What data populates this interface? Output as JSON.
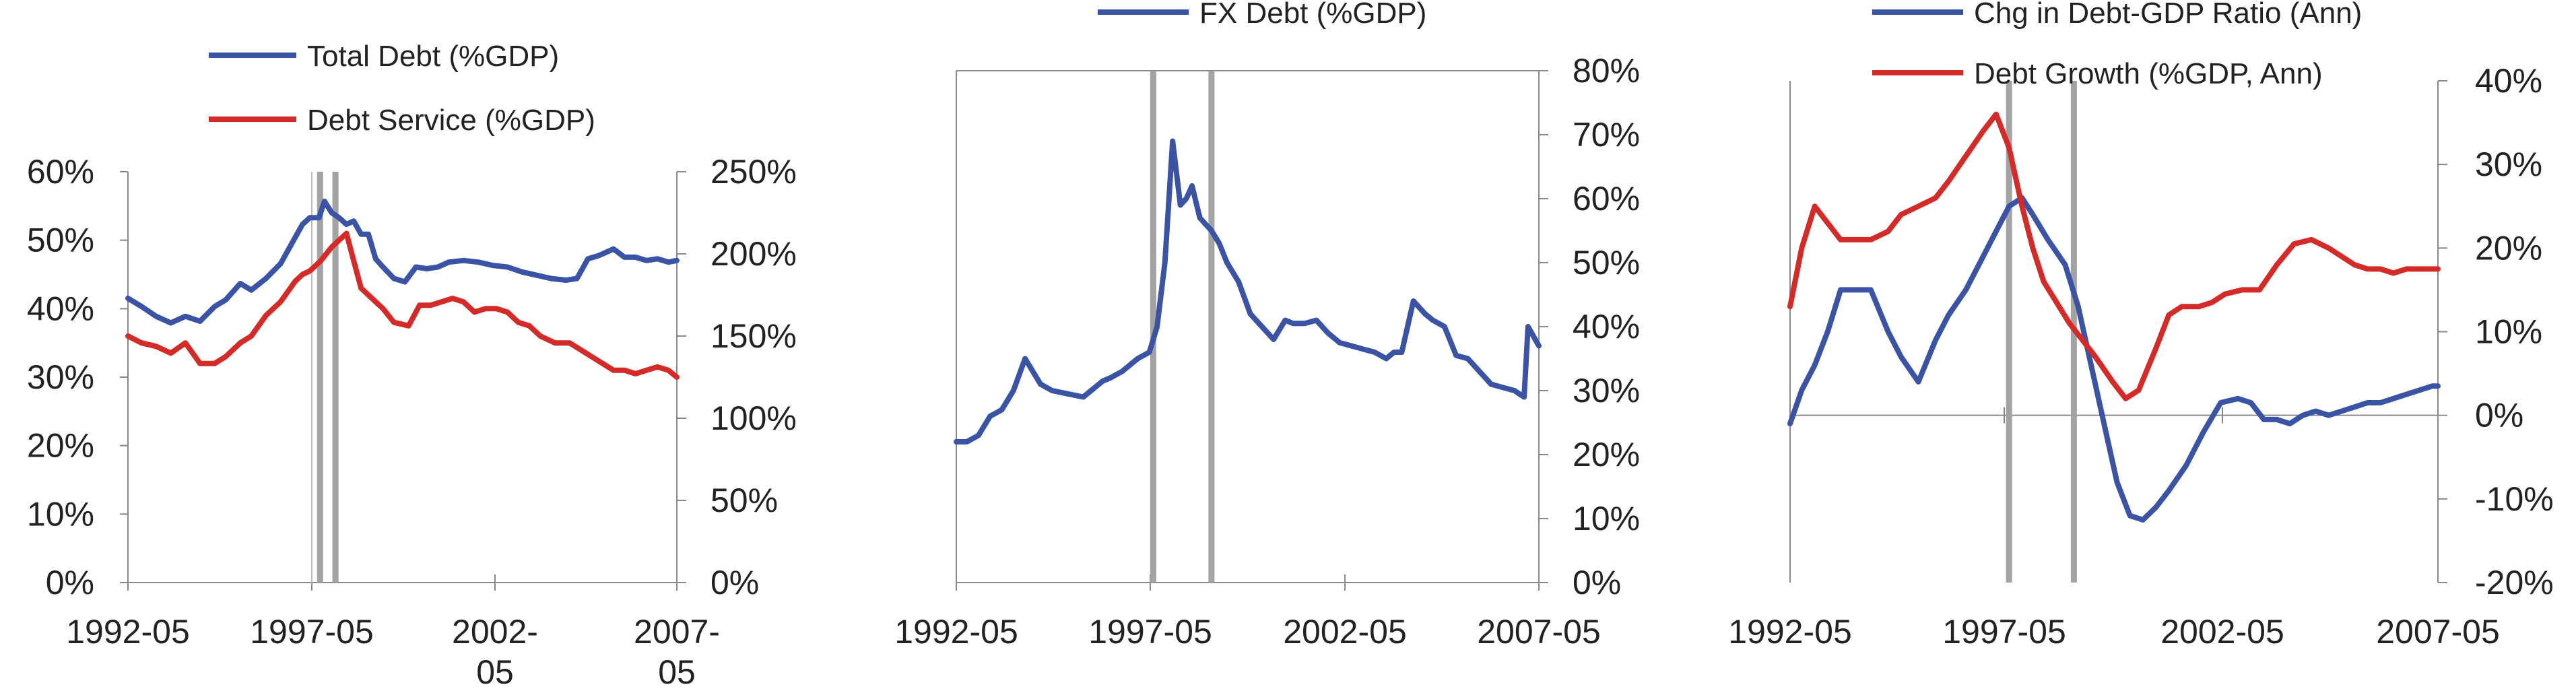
{
  "colors": {
    "blue": "#3a53a4",
    "red": "#d42a28",
    "axis": "#888888",
    "event": "#a3a3a3",
    "text": "#222222"
  },
  "chart_data": [
    {
      "type": "line",
      "title": "",
      "x_ticks": [
        "1992-05",
        "1997-05",
        "2002-",
        "2007-"
      ],
      "x_ticks_line2": [
        "",
        "",
        "05",
        "05"
      ],
      "x_range": [
        1992.33,
        2007.33
      ],
      "event_lines": [
        1997.58,
        1998.0
      ],
      "left_axis": {
        "ticks": [
          "0%",
          "10%",
          "20%",
          "30%",
          "40%",
          "50%",
          "60%"
        ],
        "range": [
          0,
          60
        ],
        "color": "red"
      },
      "right_axis": {
        "ticks": [
          "0%",
          "50%",
          "100%",
          "150%",
          "200%",
          "250%"
        ],
        "range": [
          0,
          250
        ],
        "color": "blue"
      },
      "legend": [
        "Total Debt (%GDP)",
        "Debt Service (%GDP)"
      ],
      "series": [
        {
          "name": "Total Debt (%GDP)",
          "axis": "right",
          "color": "blue",
          "x": [
            1992.33,
            1992.7,
            1993.1,
            1993.5,
            1993.9,
            1994.3,
            1994.7,
            1995.0,
            1995.4,
            1995.7,
            1996.1,
            1996.5,
            1996.9,
            1997.1,
            1997.3,
            1997.55,
            1997.7,
            1997.9,
            1998.1,
            1998.3,
            1998.5,
            1998.7,
            1998.9,
            1999.1,
            1999.3,
            1999.6,
            1999.9,
            2000.2,
            2000.5,
            2000.8,
            2001.1,
            2001.5,
            2001.9,
            2002.3,
            2002.7,
            2003.1,
            2003.5,
            2003.9,
            2004.3,
            2004.6,
            2004.9,
            2005.2,
            2005.6,
            2005.9,
            2006.2,
            2006.5,
            2006.8,
            2007.1,
            2007.33
          ],
          "y": [
            173,
            168,
            162,
            158,
            162,
            159,
            168,
            172,
            182,
            178,
            185,
            194,
            210,
            218,
            222,
            222,
            232,
            225,
            222,
            218,
            220,
            212,
            212,
            197,
            192,
            185,
            183,
            192,
            191,
            192,
            195,
            196,
            195,
            193,
            192,
            189,
            187,
            185,
            184,
            185,
            197,
            199,
            203,
            198,
            198,
            196,
            197,
            195,
            196
          ]
        },
        {
          "name": "Debt Service (%GDP)",
          "axis": "left",
          "color": "red",
          "x": [
            1992.33,
            1992.7,
            1993.1,
            1993.5,
            1993.9,
            1994.3,
            1994.7,
            1995.0,
            1995.4,
            1995.7,
            1996.1,
            1996.5,
            1996.9,
            1997.1,
            1997.3,
            1997.6,
            1997.9,
            1998.1,
            1998.3,
            1998.5,
            1998.7,
            1999.0,
            1999.3,
            1999.6,
            2000.0,
            2000.3,
            2000.6,
            2000.9,
            2001.2,
            2001.5,
            2001.8,
            2002.1,
            2002.4,
            2002.7,
            2003.0,
            2003.3,
            2003.6,
            2004.0,
            2004.4,
            2004.7,
            2005.0,
            2005.3,
            2005.6,
            2005.9,
            2006.2,
            2006.5,
            2006.8,
            2007.1,
            2007.33
          ],
          "y": [
            36,
            35,
            34.5,
            33.5,
            35,
            32,
            32,
            33,
            35,
            36,
            39,
            41,
            44,
            45,
            45.5,
            47,
            49,
            50,
            51,
            47,
            43,
            41.5,
            40,
            38,
            37.5,
            40.5,
            40.5,
            41,
            41.5,
            41,
            39.5,
            40,
            40,
            39.5,
            38,
            37.5,
            36,
            35,
            35,
            34,
            33,
            32,
            31,
            31,
            30.5,
            31,
            31.5,
            31,
            30
          ]
        }
      ]
    },
    {
      "type": "line",
      "title": "",
      "x_ticks": [
        "1992-05",
        "1997-05",
        "2002-05",
        "2007-05"
      ],
      "x_range": [
        1992.33,
        2007.33
      ],
      "event_lines": [
        1997.4,
        1998.9
      ],
      "right_axis": {
        "ticks": [
          "0%",
          "10%",
          "20%",
          "30%",
          "40%",
          "50%",
          "60%",
          "70%",
          "80%"
        ],
        "range": [
          0,
          80
        ],
        "color": "text"
      },
      "legend": [
        "FX Debt (%GDP)"
      ],
      "series": [
        {
          "name": "FX Debt (%GDP)",
          "axis": "right",
          "color": "blue",
          "x": [
            1992.33,
            1992.6,
            1992.9,
            1993.2,
            1993.5,
            1993.8,
            1994.1,
            1994.3,
            1994.5,
            1994.8,
            1995.2,
            1995.6,
            1995.8,
            1996.1,
            1996.3,
            1996.6,
            1997.0,
            1997.3,
            1997.5,
            1997.7,
            1997.9,
            1998.1,
            1998.25,
            1998.4,
            1998.6,
            1998.75,
            1998.9,
            1999.1,
            1999.3,
            1999.6,
            1999.9,
            2000.2,
            2000.5,
            2000.8,
            2001.0,
            2001.3,
            2001.6,
            2001.9,
            2002.2,
            2002.5,
            2002.8,
            2003.1,
            2003.4,
            2003.6,
            2003.8,
            2004.1,
            2004.4,
            2004.6,
            2004.9,
            2005.2,
            2005.5,
            2005.8,
            2006.1,
            2006.4,
            2006.7,
            2006.95,
            2007.05,
            2007.33
          ],
          "y": [
            22,
            22,
            23,
            26,
            27,
            30,
            35,
            33,
            31,
            30,
            29.5,
            29,
            30,
            31.5,
            32,
            33,
            35,
            36,
            40,
            50,
            69,
            59,
            60,
            62,
            57,
            56,
            55,
            53,
            50,
            47,
            42,
            40,
            38,
            41,
            40.5,
            40.5,
            41,
            39,
            37.5,
            37,
            36.5,
            36,
            35,
            36,
            36,
            44,
            42,
            41,
            40,
            35.5,
            35,
            33,
            31,
            30.5,
            30,
            29,
            40,
            37
          ]
        }
      ]
    },
    {
      "type": "line",
      "title": "",
      "x_ticks": [
        "1992-05",
        "1997-05",
        "2002-05",
        "2007-05"
      ],
      "x_range": [
        1992.33,
        2007.33
      ],
      "event_lines": [
        1997.4,
        1998.9
      ],
      "right_axis": {
        "ticks": [
          "-20%",
          "-10%",
          "0%",
          "10%",
          "20%",
          "30%",
          "40%"
        ],
        "range": [
          -20,
          40
        ],
        "color": "text"
      },
      "legend": [
        "Chg in Debt-GDP Ratio (Ann)",
        "Debt Growth (%GDP, Ann)"
      ],
      "series": [
        {
          "name": "Chg in Debt-GDP Ratio (Ann)",
          "axis": "right",
          "color": "blue",
          "x": [
            1992.33,
            1992.6,
            1992.9,
            1993.2,
            1993.5,
            1993.8,
            1994.2,
            1994.6,
            1994.9,
            1995.3,
            1995.7,
            1996.0,
            1996.4,
            1996.8,
            1997.1,
            1997.4,
            1997.7,
            1997.95,
            1998.3,
            1998.7,
            1999.0,
            1999.3,
            1999.6,
            1999.9,
            2000.2,
            2000.5,
            2000.8,
            2001.1,
            2001.5,
            2001.9,
            2002.3,
            2002.7,
            2003.0,
            2003.3,
            2003.6,
            2003.9,
            2004.2,
            2004.5,
            2004.8,
            2005.1,
            2005.4,
            2005.7,
            2006.0,
            2006.3,
            2006.6,
            2006.9,
            2007.2,
            2007.33
          ],
          "y": [
            -1,
            3,
            6,
            10,
            15,
            15,
            15,
            10,
            7,
            4,
            9,
            12,
            15,
            19,
            22,
            25,
            26,
            24,
            21,
            18,
            13,
            6,
            -1,
            -8,
            -12,
            -12.5,
            -11,
            -9,
            -6,
            -2,
            1.5,
            2,
            1.5,
            -0.5,
            -0.5,
            -1,
            0,
            0.5,
            0,
            0.5,
            1,
            1.5,
            1.5,
            2,
            2.5,
            3,
            3.5,
            3.5
          ]
        },
        {
          "name": "Debt Growth (%GDP, Ann)",
          "axis": "right",
          "color": "red",
          "x": [
            1992.33,
            1992.6,
            1992.9,
            1993.2,
            1993.5,
            1993.8,
            1994.2,
            1994.6,
            1994.9,
            1995.3,
            1995.7,
            1996.0,
            1996.4,
            1996.8,
            1997.1,
            1997.4,
            1997.7,
            1997.95,
            1998.2,
            1998.5,
            1998.8,
            1999.1,
            1999.4,
            1999.8,
            2000.1,
            2000.4,
            2000.8,
            2001.1,
            2001.4,
            2001.8,
            2002.1,
            2002.4,
            2002.8,
            2003.2,
            2003.6,
            2004.0,
            2004.4,
            2004.8,
            2005.1,
            2005.4,
            2005.7,
            2006.0,
            2006.3,
            2006.6,
            2006.9,
            2007.2,
            2007.33
          ],
          "y": [
            13,
            20,
            25,
            23,
            21,
            21,
            21,
            22,
            24,
            25,
            26,
            28,
            31,
            34,
            36,
            32,
            25,
            20,
            16,
            13.5,
            11,
            9,
            7,
            4,
            2,
            3,
            8,
            12,
            13,
            13,
            13.5,
            14.5,
            15,
            15,
            18,
            20.5,
            21,
            20,
            19,
            18,
            17.5,
            17.5,
            17,
            17.5,
            17.5,
            17.5,
            17.5
          ]
        }
      ]
    }
  ]
}
